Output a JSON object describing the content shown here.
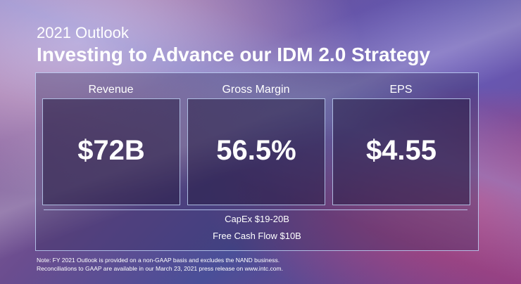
{
  "header": {
    "subtitle": "2021 Outlook",
    "title": "Investing to Advance our IDM 2.0 Strategy"
  },
  "metrics": [
    {
      "label": "Revenue",
      "value": "$72B"
    },
    {
      "label": "Gross Margin",
      "value": "56.5%"
    },
    {
      "label": "EPS",
      "value": "$4.55"
    }
  ],
  "details": [
    "CapEx $19-20B",
    "Free Cash Flow $10B"
  ],
  "notes": [
    "Note: FY 2021 Outlook is provided on a non-GAAP basis and excludes the NAND business.",
    "Reconciliations to GAAP are available in our March 23, 2021 press release on www.intc.com."
  ]
}
